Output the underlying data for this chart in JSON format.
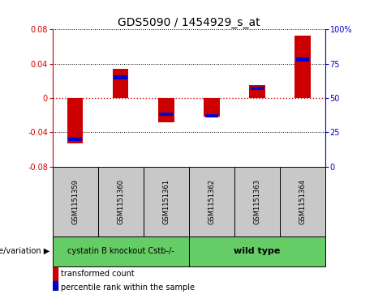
{
  "title": "GDS5090 / 1454929_s_at",
  "samples": [
    "GSM1151359",
    "GSM1151360",
    "GSM1151361",
    "GSM1151362",
    "GSM1151363",
    "GSM1151364"
  ],
  "red_values": [
    -0.053,
    0.034,
    -0.028,
    -0.022,
    0.015,
    0.073
  ],
  "blue_values_raw": [
    20,
    65,
    38,
    37,
    57,
    78
  ],
  "ylim_left": [
    -0.08,
    0.08
  ],
  "ylim_right": [
    0,
    100
  ],
  "yticks_left": [
    -0.08,
    -0.04,
    0.0,
    0.04,
    0.08
  ],
  "yticks_right": [
    0,
    25,
    50,
    75,
    100
  ],
  "group1_label": "cystatin B knockout Cstb-/-",
  "group2_label": "wild type",
  "group_label": "genotype/variation",
  "legend_red": "transformed count",
  "legend_blue": "percentile rank within the sample",
  "bar_width": 0.35,
  "red_color": "#CC0000",
  "blue_color": "#0000CC",
  "dotted_zero_color": "#CC0000",
  "bg_sample_box": "#C8C8C8",
  "bg_group": "#66CC66",
  "title_fontsize": 10,
  "tick_fontsize": 7,
  "sample_fontsize": 6,
  "group_fontsize": 7
}
